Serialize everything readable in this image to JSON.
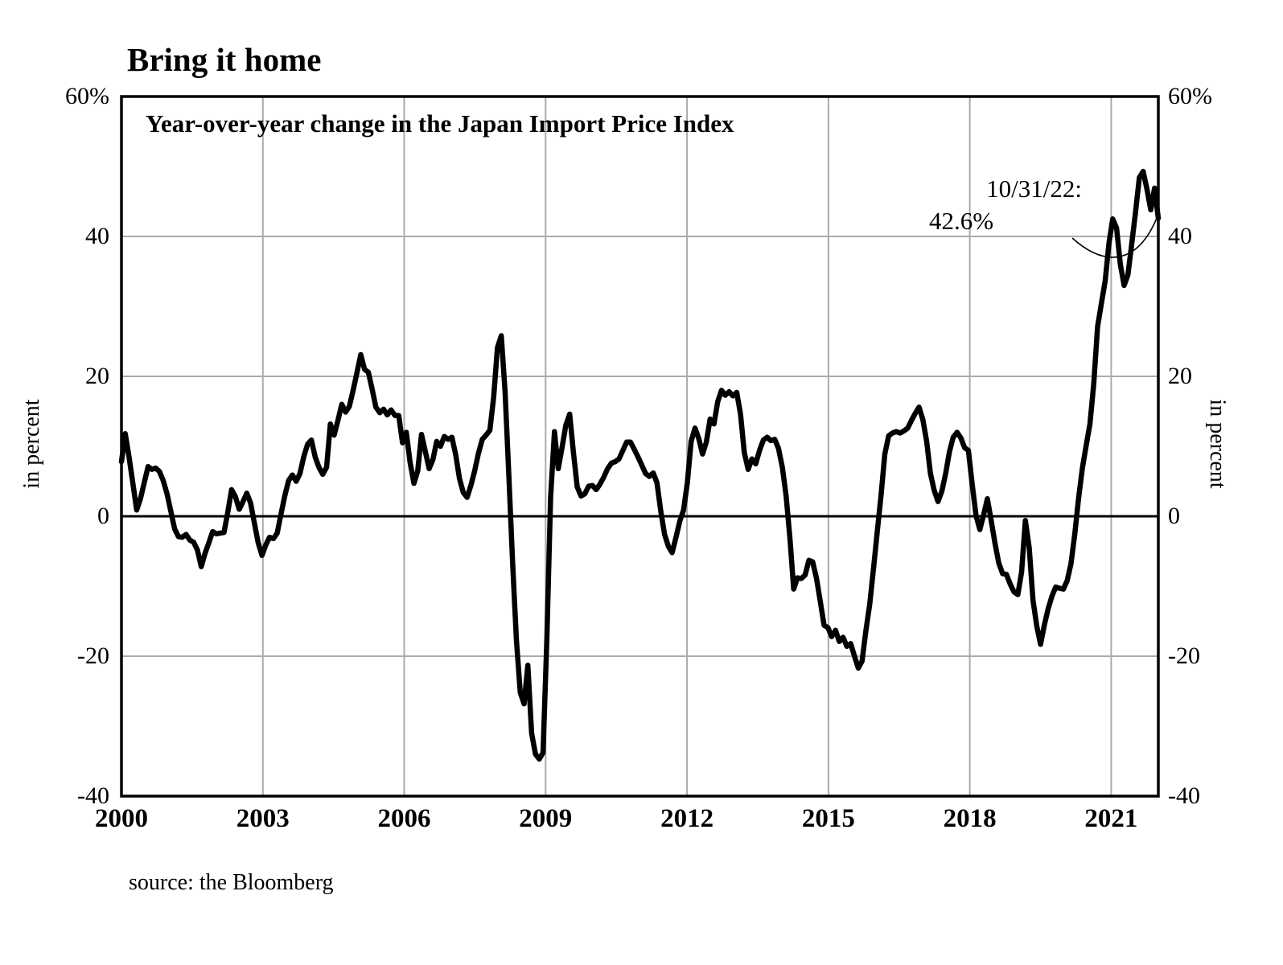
{
  "title": "Bring it home",
  "subtitle": "Year-over-year change in the Japan Import Price Index",
  "source": "source: the Bloomberg",
  "annotation": {
    "line1": "10/31/22:",
    "line2": "42.6%"
  },
  "y_axis": {
    "axis_title": "in percent",
    "min": -40,
    "max": 60,
    "ticks": [
      {
        "value": 60,
        "label": "60%"
      },
      {
        "value": 40,
        "label": "40"
      },
      {
        "value": 20,
        "label": "20"
      },
      {
        "value": 0,
        "label": "0"
      },
      {
        "value": -20,
        "label": "-20"
      },
      {
        "value": -40,
        "label": "-40"
      }
    ],
    "gridline_values": [
      40,
      20,
      -20
    ],
    "zero_line_value": 0
  },
  "x_axis": {
    "start_year": 2000,
    "end_year": 2022,
    "tick_years": [
      2000,
      2003,
      2006,
      2009,
      2012,
      2015,
      2018,
      2021
    ],
    "gridline_years": [
      2003,
      2006,
      2009,
      2012,
      2015,
      2018,
      2021
    ]
  },
  "colors": {
    "line": "#000000",
    "grid": "#ababab",
    "frame": "#000000",
    "background": "#ffffff"
  },
  "chart_data": {
    "type": "line",
    "title": "Year-over-year change in the Japan Import Price Index",
    "series_name": "Japan Import Price Index YoY change",
    "unit": "percent",
    "frequency": "monthly",
    "x_start": "2000-01",
    "x_end": "2022-10",
    "ylim": [
      -40,
      60
    ],
    "grid": true,
    "legend": false,
    "last_point": {
      "date": "10/31/22",
      "value": 42.6
    },
    "values": [
      7.8,
      11.8,
      8.5,
      4.7,
      0.9,
      2.5,
      4.8,
      7.1,
      6.7,
      6.9,
      6.4,
      5.1,
      3.2,
      0.7,
      -1.8,
      -2.9,
      -3.0,
      -2.6,
      -3.4,
      -3.7,
      -4.8,
      -7.2,
      -5.3,
      -3.8,
      -2.2,
      -2.5,
      -2.4,
      -2.3,
      0.6,
      3.8,
      2.8,
      1.0,
      2.1,
      3.3,
      1.9,
      -1.0,
      -3.8,
      -5.6,
      -4.1,
      -3.0,
      -3.2,
      -2.4,
      0.3,
      2.9,
      5.1,
      5.9,
      5.0,
      6.1,
      8.5,
      10.3,
      10.9,
      8.5,
      7.0,
      6.0,
      7.0,
      13.2,
      11.6,
      13.7,
      16.0,
      14.9,
      15.7,
      18.0,
      20.5,
      23.1,
      21.0,
      20.6,
      18.2,
      15.6,
      14.8,
      15.3,
      14.5,
      15.2,
      14.4,
      14.4,
      10.5,
      12.0,
      7.7,
      4.7,
      6.5,
      11.7,
      9.3,
      6.8,
      8.1,
      10.7,
      10.0,
      11.4,
      11.0,
      11.3,
      8.8,
      5.4,
      3.4,
      2.7,
      4.4,
      6.5,
      9.0,
      11.0,
      11.6,
      12.3,
      17.0,
      24.1,
      25.8,
      17.8,
      5.8,
      -6.7,
      -17.7,
      -25.2,
      -26.8,
      -21.3,
      -31.0,
      -34.0,
      -34.7,
      -33.8,
      -17.7,
      2.7,
      12.1,
      6.8,
      9.8,
      13.0,
      14.6,
      9.1,
      4.2,
      2.9,
      3.2,
      4.3,
      4.4,
      3.8,
      4.6,
      5.6,
      6.8,
      7.6,
      7.8,
      8.2,
      9.4,
      10.6,
      10.6,
      9.6,
      8.5,
      7.3,
      6.1,
      5.7,
      6.2,
      4.8,
      0.7,
      -2.6,
      -4.3,
      -5.2,
      -3.0,
      -0.7,
      0.9,
      4.8,
      10.7,
      12.6,
      11.1,
      8.9,
      10.6,
      13.9,
      13.2,
      16.4,
      18.0,
      17.3,
      17.8,
      17.2,
      17.7,
      14.6,
      9.1,
      6.7,
      8.2,
      7.5,
      9.4,
      10.9,
      11.3,
      10.8,
      11.0,
      9.7,
      7.0,
      2.9,
      -3.1,
      -10.4,
      -8.8,
      -8.9,
      -8.4,
      -6.3,
      -6.5,
      -8.9,
      -12.2,
      -15.6,
      -15.9,
      -17.2,
      -16.3,
      -17.9,
      -17.3,
      -18.6,
      -18.2,
      -20.0,
      -21.7,
      -20.7,
      -16.4,
      -12.6,
      -7.5,
      -2.2,
      3.0,
      8.9,
      11.5,
      11.9,
      12.1,
      11.9,
      12.2,
      12.6,
      13.7,
      14.7,
      15.6,
      13.8,
      10.7,
      6.1,
      3.7,
      2.1,
      3.6,
      6.1,
      9.2,
      11.3,
      12.0,
      11.2,
      9.8,
      9.4,
      4.6,
      0.1,
      -1.9,
      0.2,
      2.5,
      -0.6,
      -3.9,
      -6.7,
      -8.2,
      -8.3,
      -9.7,
      -10.8,
      -11.2,
      -8.0,
      -0.6,
      -4.5,
      -12.0,
      -15.7,
      -18.3,
      -15.5,
      -13.2,
      -11.4,
      -10.1,
      -10.3,
      -10.4,
      -9.2,
      -6.8,
      -2.6,
      2.5,
      6.9,
      10.1,
      13.2,
      18.9,
      27.1,
      30.4,
      33.6,
      39.0,
      42.5,
      41.2,
      36.0,
      33.0,
      34.5,
      38.9,
      43.5,
      48.4,
      49.3,
      46.8,
      43.8,
      46.9,
      42.6
    ]
  }
}
